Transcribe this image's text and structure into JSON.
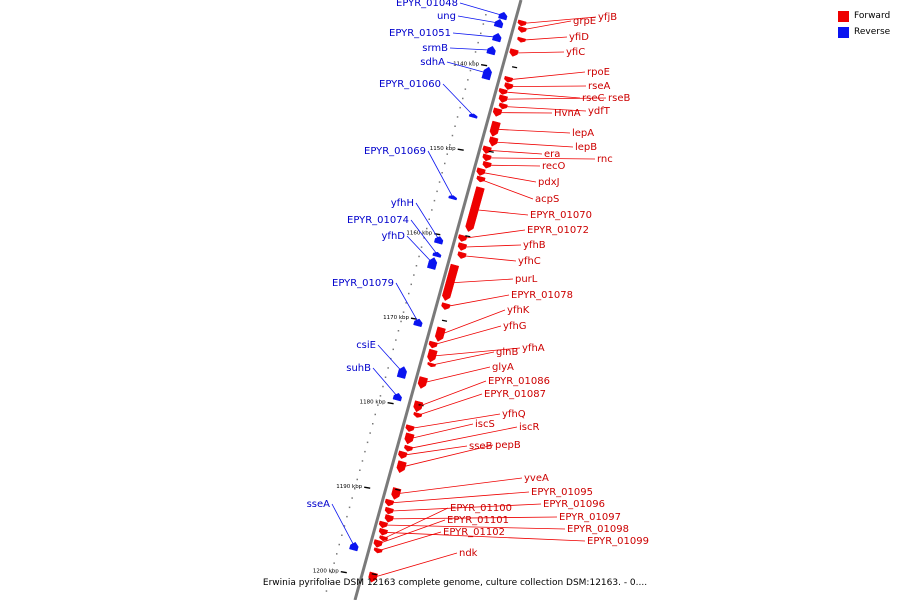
{
  "colors": {
    "forward": "#ee0000",
    "reverse": "#0a14f0",
    "backbone": "#7a7a7a"
  },
  "legend": [
    {
      "label": "Forward",
      "color": "#ee0000"
    },
    {
      "label": "Reverse",
      "color": "#0a14f0"
    }
  ],
  "caption": "Erwinia pyrifoliae DSM 12163 complete genome, culture collection DSM:12163. - 0....",
  "scale": {
    "start_kbp": 1134,
    "end_kbp": 1203,
    "unit": "kbp"
  },
  "ticks": [
    "1140 kbp",
    "1150 kbp",
    "1160 kbp",
    "1170 kbp",
    "1180 kbp",
    "1190 kbp",
    "1200 kbp"
  ],
  "reverse_genes": [
    {
      "name": "EPYR_01048",
      "start_kbp": 1134.2,
      "end_kbp": 1135.0
    },
    {
      "name": "ung",
      "start_kbp": 1135.1,
      "end_kbp": 1136.0
    },
    {
      "name": "EPYR_01051",
      "start_kbp": 1136.7,
      "end_kbp": 1137.6
    },
    {
      "name": "srmB",
      "start_kbp": 1138.3,
      "end_kbp": 1139.2
    },
    {
      "name": "sdhA",
      "start_kbp": 1140.7,
      "end_kbp": 1142.1
    },
    {
      "name": "EPYR_01060",
      "start_kbp": 1146.3,
      "end_kbp": 1146.7
    },
    {
      "name": "EPYR_01069",
      "start_kbp": 1155.9,
      "end_kbp": 1156.3
    },
    {
      "name": "yfhH",
      "start_kbp": 1160.8,
      "end_kbp": 1161.6
    },
    {
      "name": "EPYR_01074",
      "start_kbp": 1162.6,
      "end_kbp": 1163.1
    },
    {
      "name": "yfhD",
      "start_kbp": 1163.3,
      "end_kbp": 1164.6
    },
    {
      "name": "EPYR_01079",
      "start_kbp": 1170.5,
      "end_kbp": 1171.3
    },
    {
      "name": "csiE",
      "start_kbp": 1176.2,
      "end_kbp": 1177.5
    },
    {
      "name": "suhB",
      "start_kbp": 1179.3,
      "end_kbp": 1180.1
    },
    {
      "name": "sseA",
      "start_kbp": 1197.0,
      "end_kbp": 1197.9
    }
  ],
  "forward_genes": [
    {
      "name": "yfjB",
      "start_kbp": 1134.6,
      "end_kbp": 1135.2
    },
    {
      "name": "grpE",
      "start_kbp": 1135.3,
      "end_kbp": 1135.9
    },
    {
      "name": "yfiD",
      "start_kbp": 1136.5,
      "end_kbp": 1137.0
    },
    {
      "name": "yfiC",
      "start_kbp": 1138.0,
      "end_kbp": 1138.8
    },
    {
      "name": "rpoE",
      "start_kbp": 1141.2,
      "end_kbp": 1141.8
    },
    {
      "name": "rseA",
      "start_kbp": 1141.9,
      "end_kbp": 1142.6
    },
    {
      "name": "rseC",
      "start_kbp": 1142.7,
      "end_kbp": 1143.3
    },
    {
      "name": "rseB",
      "start_kbp": 1143.4,
      "end_kbp": 1144.2
    },
    {
      "name": "ydfT",
      "start_kbp": 1144.3,
      "end_kbp": 1144.9
    },
    {
      "name": "HvnA",
      "start_kbp": 1145.0,
      "end_kbp": 1145.9
    },
    {
      "name": "lepA",
      "start_kbp": 1146.5,
      "end_kbp": 1148.2
    },
    {
      "name": "lepB",
      "start_kbp": 1148.3,
      "end_kbp": 1149.3
    },
    {
      "name": "era",
      "start_kbp": 1149.5,
      "end_kbp": 1150.3
    },
    {
      "name": "rnc",
      "start_kbp": 1150.4,
      "end_kbp": 1151.1
    },
    {
      "name": "recO",
      "start_kbp": 1151.2,
      "end_kbp": 1151.9
    },
    {
      "name": "pdxJ",
      "start_kbp": 1152.1,
      "end_kbp": 1152.9
    },
    {
      "name": "acpS",
      "start_kbp": 1153.0,
      "end_kbp": 1153.6
    },
    {
      "name": "EPYR_01070",
      "start_kbp": 1154.2,
      "end_kbp": 1159.4
    },
    {
      "name": "EPYR_01072",
      "start_kbp": 1160.0,
      "end_kbp": 1160.7
    },
    {
      "name": "yfhB",
      "start_kbp": 1160.9,
      "end_kbp": 1161.7
    },
    {
      "name": "yfhC",
      "start_kbp": 1161.9,
      "end_kbp": 1162.6
    },
    {
      "name": "purL",
      "start_kbp": 1163.5,
      "end_kbp": 1167.7
    },
    {
      "name": "EPYR_01078",
      "start_kbp": 1168.0,
      "end_kbp": 1168.7
    },
    {
      "name": "yfhK",
      "start_kbp": 1170.8,
      "end_kbp": 1172.4
    },
    {
      "name": "yfhG",
      "start_kbp": 1172.6,
      "end_kbp": 1173.3
    },
    {
      "name": "yfhA",
      "start_kbp": 1173.5,
      "end_kbp": 1174.9
    },
    {
      "name": "glnB",
      "start_kbp": 1175.0,
      "end_kbp": 1175.4
    },
    {
      "name": "glyA",
      "start_kbp": 1176.8,
      "end_kbp": 1178.1
    },
    {
      "name": "EPYR_01086",
      "start_kbp": 1179.6,
      "end_kbp": 1180.8
    },
    {
      "name": "EPYR_01087",
      "start_kbp": 1180.9,
      "end_kbp": 1181.4
    },
    {
      "name": "yfhQ",
      "start_kbp": 1182.5,
      "end_kbp": 1183.2
    },
    {
      "name": "iscS",
      "start_kbp": 1183.4,
      "end_kbp": 1184.6
    },
    {
      "name": "iscR",
      "start_kbp": 1184.8,
      "end_kbp": 1185.4
    },
    {
      "name": "sseB",
      "start_kbp": 1185.6,
      "end_kbp": 1186.4
    },
    {
      "name": "pepB",
      "start_kbp": 1186.7,
      "end_kbp": 1188.0
    },
    {
      "name": "yveA",
      "start_kbp": 1189.8,
      "end_kbp": 1191.1
    },
    {
      "name": "EPYR_01095",
      "start_kbp": 1191.3,
      "end_kbp": 1192.0
    },
    {
      "name": "EPYR_01096",
      "start_kbp": 1192.2,
      "end_kbp": 1192.9
    },
    {
      "name": "EPYR_01097",
      "start_kbp": 1193.0,
      "end_kbp": 1193.8
    },
    {
      "name": "EPYR_01098",
      "start_kbp": 1193.9,
      "end_kbp": 1194.6
    },
    {
      "name": "EPYR_01099",
      "start_kbp": 1194.7,
      "end_kbp": 1195.4
    },
    {
      "name": "EPYR_01100",
      "start_kbp": 1195.5,
      "end_kbp": 1196.0
    },
    {
      "name": "EPYR_01101",
      "start_kbp": 1196.1,
      "end_kbp": 1196.9
    },
    {
      "name": "EPYR_01102",
      "start_kbp": 1197.0,
      "end_kbp": 1197.5
    },
    {
      "name": "ndk",
      "start_kbp": 1199.8,
      "end_kbp": 1200.9
    }
  ]
}
